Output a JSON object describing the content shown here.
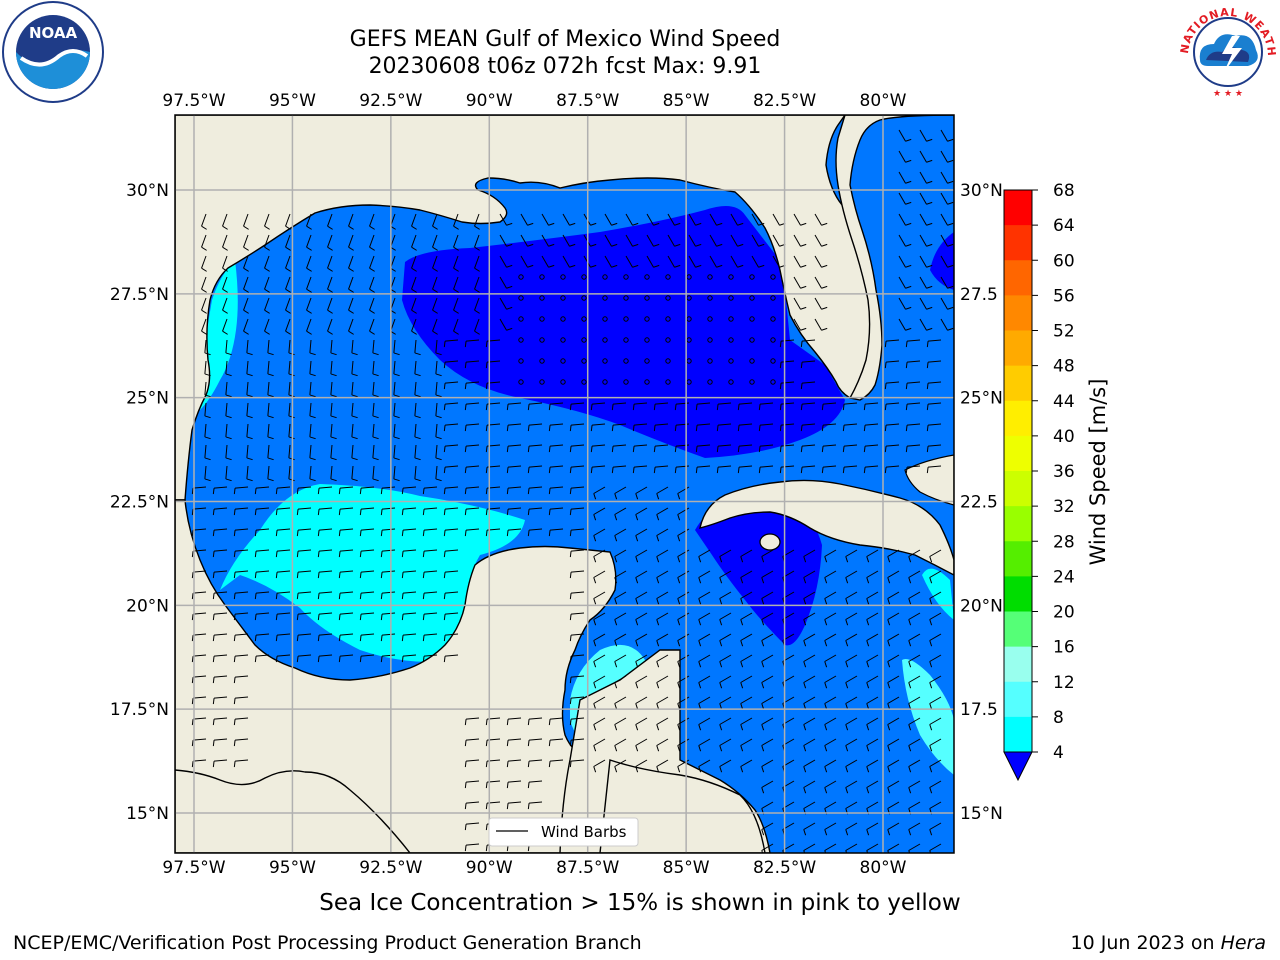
{
  "title": {
    "line1": "GEFS MEAN Gulf of Mexico Wind Speed",
    "line2": "20230608 t06z 072h fcst   Max: 9.91"
  },
  "map": {
    "lon_labels": [
      "97.5°W",
      "95°W",
      "92.5°W",
      "90°W",
      "87.5°W",
      "85°W",
      "82.5°W",
      "80°W"
    ],
    "lat_labels_left": [
      "30°N",
      "27.5°N",
      "25°N",
      "22.5°N",
      "20°N",
      "17.5°N",
      "15°N"
    ],
    "lat_labels_right": [
      "30°N",
      "27.5",
      "25°N",
      "22.5",
      "20°N",
      "17.5",
      "15°N"
    ],
    "lon_values": [
      -97.5,
      -95,
      -92.5,
      -90,
      -87.5,
      -85,
      -82.5,
      -80
    ],
    "lat_values": [
      30,
      27.5,
      25,
      22.5,
      20,
      17.5,
      15
    ],
    "legend_label": "Wind Barbs",
    "land_color": "#efedde",
    "grid_color": "#b0b0b0"
  },
  "colorbar": {
    "label": "Wind Speed [m/s]",
    "ticks": [
      "68",
      "64",
      "60",
      "56",
      "52",
      "48",
      "44",
      "40",
      "36",
      "32",
      "28",
      "24",
      "20",
      "16",
      "12",
      "8",
      "4"
    ],
    "colors": [
      "#ff0000",
      "#ff3300",
      "#ff6600",
      "#ff8800",
      "#ffaa00",
      "#ffcc00",
      "#ffee00",
      "#eeff00",
      "#ccff00",
      "#99ff00",
      "#55ee00",
      "#00dd00",
      "#55ff77",
      "#99ffee",
      "#55ffff",
      "#00ffff",
      "#0077ff"
    ],
    "under_color": "#0000ff"
  },
  "speed_colors": {
    "lt4": "#0000ff",
    "4to8": "#0077ff",
    "8to12": "#00ffff",
    "12to16": "#55ffff"
  },
  "footer": {
    "caption": "Sea Ice Concentration > 15% is shown in pink to yellow",
    "credit": "NCEP/EMC/Verification Post Processing Product Generation Branch",
    "date": "10 Jun 2023 on",
    "host": "Hera"
  },
  "logos": {
    "left": "noaa-logo",
    "right": "nws-logo"
  }
}
